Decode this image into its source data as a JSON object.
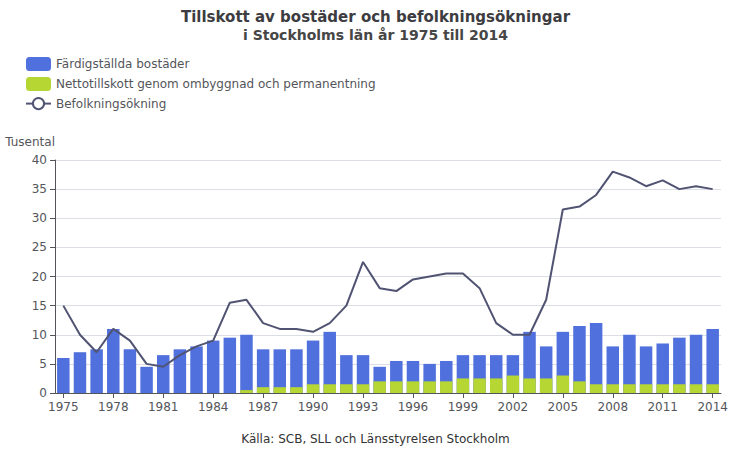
{
  "chart_data": {
    "type": "bar",
    "title": "Tillskott av bostäder och befolkningsökningar",
    "subtitle": "i Stockholms län år 1975 till 2014",
    "ylabel": "Tusental",
    "annotations": [
      "Källa: SCB, SLL och Länsstyrelsen Stockholm"
    ],
    "x": [
      1975,
      1976,
      1977,
      1978,
      1979,
      1980,
      1981,
      1982,
      1983,
      1984,
      1985,
      1986,
      1987,
      1988,
      1989,
      1990,
      1991,
      1992,
      1993,
      1994,
      1995,
      1996,
      1997,
      1998,
      1999,
      2000,
      2001,
      2002,
      2003,
      2004,
      2005,
      2006,
      2007,
      2008,
      2009,
      2010,
      2011,
      2012,
      2013,
      2014
    ],
    "series": [
      {
        "name": "Färdigställda bostäder",
        "type": "bar",
        "values": [
          6.0,
          7.0,
          7.5,
          11.0,
          7.5,
          4.5,
          6.5,
          7.5,
          8.0,
          9.0,
          9.5,
          10.0,
          7.5,
          7.5,
          7.5,
          9.0,
          10.5,
          6.5,
          6.5,
          4.5,
          5.5,
          5.5,
          5.0,
          5.5,
          6.5,
          6.5,
          6.5,
          6.5,
          10.5,
          8.0,
          10.5,
          11.5,
          12.0,
          8.0,
          10.0,
          8.0,
          8.5,
          9.5,
          10.0,
          11.0
        ]
      },
      {
        "name": "Nettotillskott genom ombyggnad och permanentning",
        "type": "bar",
        "values": [
          0.0,
          0.0,
          0.0,
          0.0,
          0.0,
          0.0,
          0.0,
          0.0,
          0.0,
          0.0,
          0.0,
          0.5,
          1.0,
          1.0,
          1.0,
          1.5,
          1.5,
          1.5,
          1.5,
          2.0,
          2.0,
          2.0,
          2.0,
          2.0,
          2.5,
          2.5,
          2.5,
          3.0,
          2.5,
          2.5,
          3.0,
          2.0,
          1.5,
          1.5,
          1.5,
          1.5,
          1.5,
          1.5,
          1.5,
          1.5
        ]
      },
      {
        "name": "Befolkningsökning",
        "type": "line",
        "values": [
          15.0,
          10.0,
          7.0,
          11.0,
          9.0,
          5.0,
          4.5,
          6.5,
          8.0,
          9.0,
          15.5,
          16.0,
          12.0,
          11.0,
          11.0,
          10.5,
          12.0,
          15.0,
          22.5,
          18.0,
          17.5,
          19.5,
          20.0,
          20.5,
          20.5,
          18.0,
          12.0,
          10.0,
          10.0,
          16.0,
          31.5,
          32.0,
          34.0,
          38.0,
          37.0,
          35.5,
          36.5,
          35.0,
          35.5,
          35.0
        ]
      }
    ],
    "xlim": [
      1974.5,
      2014.5
    ],
    "xticks": [
      1975,
      1978,
      1981,
      1984,
      1987,
      1990,
      1993,
      1996,
      1999,
      2002,
      2005,
      2008,
      2011,
      2014
    ],
    "ylim": [
      0,
      40
    ],
    "yticks": [
      0,
      5,
      10,
      15,
      20,
      25,
      30,
      35,
      40
    ],
    "grid": true,
    "legend": "upper left"
  }
}
